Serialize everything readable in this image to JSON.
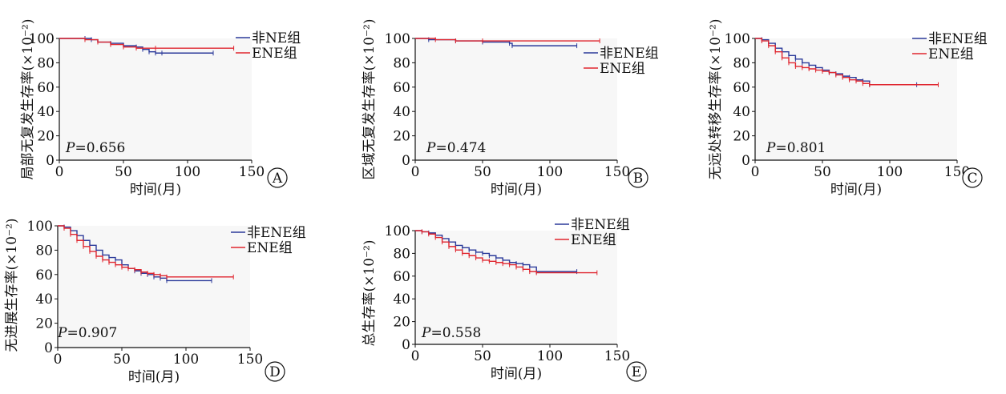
{
  "colors": {
    "non_ene": "#2b3a9a",
    "ene": "#e0262f"
  },
  "chart_data": [
    {
      "type": "line",
      "panel": "A",
      "ylabel": "局部无复发生存率(×10⁻²)",
      "xlabel": "时间(月)",
      "p_label": "P",
      "p_value": "=0.656",
      "xlim": [
        0,
        150
      ],
      "ylim": [
        0,
        100
      ],
      "xticks": [
        "0",
        "50",
        "100",
        "150"
      ],
      "yticks": [
        "0",
        "20",
        "40",
        "60",
        "80",
        "100"
      ],
      "legend_position": "top-right",
      "series": [
        {
          "name": "非NE组",
          "x": [
            0,
            20,
            25,
            30,
            40,
            50,
            60,
            65,
            70,
            75,
            80,
            120
          ],
          "y": [
            100,
            100,
            99,
            97,
            96,
            94,
            93,
            91,
            89,
            88,
            88,
            88
          ]
        },
        {
          "name": "ENE组",
          "x": [
            0,
            20,
            30,
            40,
            50,
            60,
            75,
            136
          ],
          "y": [
            100,
            99,
            97,
            95,
            93,
            92,
            92,
            92
          ]
        }
      ]
    },
    {
      "type": "line",
      "panel": "B",
      "ylabel": "区域无复发生存率(×10⁻²)",
      "xlabel": "时间(月)",
      "p_label": "P",
      "p_value": "=0.474",
      "xlim": [
        0,
        150
      ],
      "ylim": [
        0,
        100
      ],
      "xticks": [
        "0",
        "50",
        "100",
        "150"
      ],
      "yticks": [
        "0",
        "20",
        "40",
        "60",
        "80",
        "100"
      ],
      "legend_position": "top-right",
      "series": [
        {
          "name": "非ENE组",
          "x": [
            0,
            10,
            30,
            50,
            70,
            72,
            120
          ],
          "y": [
            100,
            99,
            98,
            97,
            96,
            94,
            94
          ]
        },
        {
          "name": "ENE组",
          "x": [
            0,
            15,
            30,
            50,
            137
          ],
          "y": [
            100,
            99,
            98,
            98,
            98
          ]
        }
      ]
    },
    {
      "type": "line",
      "panel": "C",
      "ylabel": "无远处转移生存率(×10⁻²)",
      "xlabel": "时间(月)",
      "p_label": "P",
      "p_value": "=0.801",
      "xlim": [
        0,
        150
      ],
      "ylim": [
        0,
        100
      ],
      "xticks": [
        "0",
        "50",
        "100",
        "150"
      ],
      "yticks": [
        "0",
        "20",
        "40",
        "60",
        "80",
        "100"
      ],
      "legend_position": "top-right",
      "series": [
        {
          "name": "非ENE组",
          "x": [
            0,
            5,
            10,
            15,
            20,
            25,
            30,
            35,
            40,
            45,
            50,
            55,
            60,
            65,
            70,
            75,
            80,
            85,
            120
          ],
          "y": [
            100,
            99,
            96,
            92,
            89,
            86,
            83,
            80,
            78,
            76,
            74,
            72,
            71,
            69,
            68,
            66,
            65,
            62,
            62
          ]
        },
        {
          "name": "ENE组",
          "x": [
            0,
            5,
            10,
            15,
            20,
            25,
            30,
            35,
            40,
            45,
            50,
            55,
            60,
            65,
            70,
            75,
            80,
            85,
            136
          ],
          "y": [
            100,
            98,
            94,
            89,
            84,
            80,
            77,
            76,
            75,
            74,
            73,
            72,
            70,
            68,
            66,
            65,
            63,
            62,
            62
          ]
        }
      ]
    },
    {
      "type": "line",
      "panel": "D",
      "ylabel": "无进展生存率(×10⁻²)",
      "xlabel": "时间(月)",
      "p_label": "P",
      "p_value": "=0.907",
      "xlim": [
        0,
        150
      ],
      "ylim": [
        0,
        100
      ],
      "xticks": [
        "0",
        "50",
        "100",
        "150"
      ],
      "yticks": [
        "0",
        "20",
        "40",
        "60",
        "80",
        "100"
      ],
      "legend_position": "top-right",
      "series": [
        {
          "name": "非ENE组",
          "x": [
            0,
            5,
            10,
            15,
            20,
            25,
            30,
            35,
            40,
            45,
            50,
            55,
            60,
            65,
            70,
            75,
            80,
            85,
            120
          ],
          "y": [
            100,
            99,
            96,
            92,
            88,
            84,
            80,
            76,
            74,
            72,
            68,
            65,
            63,
            61,
            60,
            58,
            57,
            55,
            55
          ]
        },
        {
          "name": "ENE组",
          "x": [
            0,
            5,
            10,
            15,
            20,
            25,
            30,
            35,
            40,
            45,
            50,
            55,
            60,
            65,
            70,
            75,
            80,
            85,
            137
          ],
          "y": [
            100,
            98,
            93,
            88,
            83,
            79,
            75,
            72,
            70,
            68,
            66,
            65,
            64,
            62,
            61,
            60,
            59,
            58,
            58
          ]
        }
      ]
    },
    {
      "type": "line",
      "panel": "E",
      "ylabel": "总生存率(×10⁻²)",
      "xlabel": "时间(月)",
      "p_label": "P",
      "p_value": "=0.558",
      "xlim": [
        0,
        150
      ],
      "ylim": [
        0,
        100
      ],
      "xticks": [
        "0",
        "50",
        "100",
        "150"
      ],
      "yticks": [
        "0",
        "20",
        "40",
        "60",
        "80",
        "100"
      ],
      "legend_position": "top-right",
      "series": [
        {
          "name": "非ENE组",
          "x": [
            0,
            5,
            10,
            15,
            20,
            25,
            30,
            35,
            40,
            45,
            50,
            55,
            60,
            65,
            70,
            75,
            80,
            85,
            90,
            120
          ],
          "y": [
            100,
            99,
            98,
            96,
            93,
            90,
            87,
            85,
            83,
            81,
            80,
            78,
            76,
            74,
            72,
            71,
            70,
            68,
            64,
            64
          ]
        },
        {
          "name": "ENE组",
          "x": [
            0,
            5,
            10,
            15,
            20,
            25,
            30,
            35,
            40,
            45,
            50,
            55,
            60,
            65,
            70,
            75,
            80,
            85,
            90,
            135
          ],
          "y": [
            100,
            99,
            97,
            94,
            90,
            86,
            83,
            80,
            78,
            76,
            74,
            73,
            72,
            71,
            70,
            68,
            66,
            64,
            63,
            63
          ]
        }
      ]
    }
  ]
}
